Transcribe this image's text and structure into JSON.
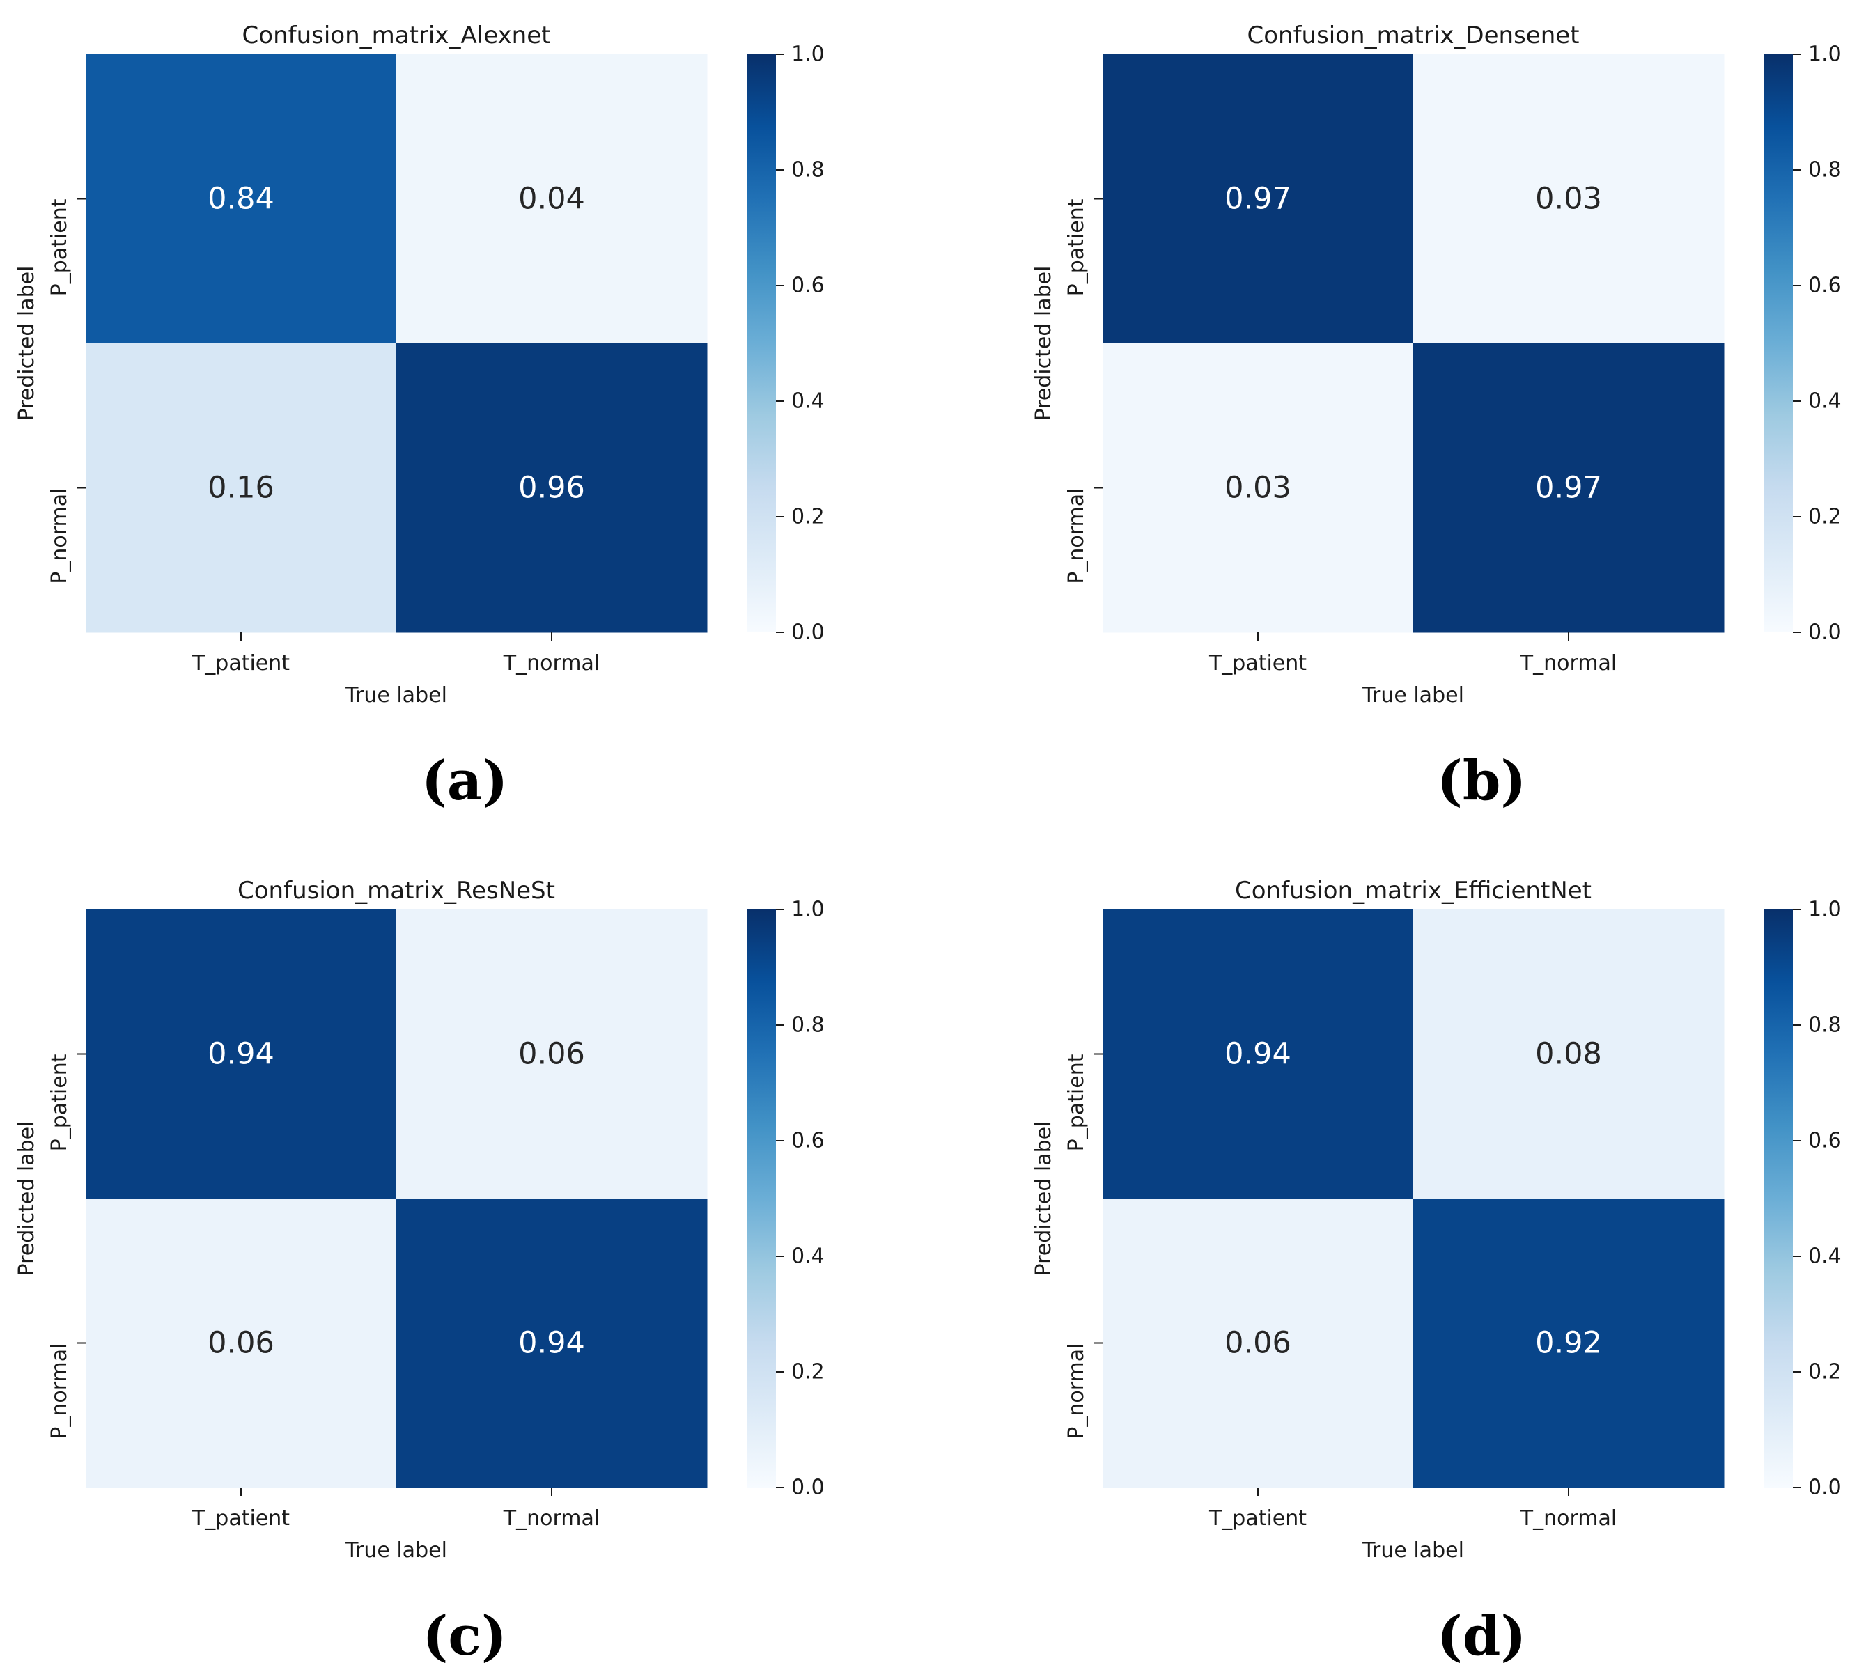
{
  "colormap": {
    "name": "Blues",
    "stops": [
      "#f7fbff",
      "#deebf7",
      "#c6dbef",
      "#9ecae1",
      "#6baed6",
      "#4292c6",
      "#2171b5",
      "#08519c",
      "#08306b"
    ]
  },
  "text_colors": {
    "dark": "#262626",
    "light": "#ffffff"
  },
  "chart_data": [
    {
      "type": "heatmap",
      "panel_label": "(a)",
      "title": "Confusion_matrix_Alexnet",
      "xlabel": "True label",
      "ylabel": "Predicted label",
      "x_categories": [
        "T_patient",
        "T_normal"
      ],
      "y_categories": [
        "P_patient",
        "P_normal"
      ],
      "values": [
        [
          0.84,
          0.04
        ],
        [
          0.16,
          0.96
        ]
      ],
      "value_labels": [
        [
          "0.84",
          "0.04"
        ],
        [
          "0.16",
          "0.96"
        ]
      ],
      "colorbar": {
        "range": [
          0.0,
          1.0
        ],
        "ticks": [
          "0.0",
          "0.2",
          "0.4",
          "0.6",
          "0.8",
          "1.0"
        ]
      }
    },
    {
      "type": "heatmap",
      "panel_label": "(b)",
      "title": "Confusion_matrix_Densenet",
      "xlabel": "True label",
      "ylabel": "Predicted label",
      "x_categories": [
        "T_patient",
        "T_normal"
      ],
      "y_categories": [
        "P_patient",
        "P_normal"
      ],
      "values": [
        [
          0.97,
          0.03
        ],
        [
          0.03,
          0.97
        ]
      ],
      "value_labels": [
        [
          "0.97",
          "0.03"
        ],
        [
          "0.03",
          "0.97"
        ]
      ],
      "colorbar": {
        "range": [
          0.0,
          1.0
        ],
        "ticks": [
          "0.0",
          "0.2",
          "0.4",
          "0.6",
          "0.8",
          "1.0"
        ]
      }
    },
    {
      "type": "heatmap",
      "panel_label": "(c)",
      "title": "Confusion_matrix_ResNeSt",
      "xlabel": "True label",
      "ylabel": "Predicted label",
      "x_categories": [
        "T_patient",
        "T_normal"
      ],
      "y_categories": [
        "P_patient",
        "P_normal"
      ],
      "values": [
        [
          0.94,
          0.06
        ],
        [
          0.06,
          0.94
        ]
      ],
      "value_labels": [
        [
          "0.94",
          "0.06"
        ],
        [
          "0.06",
          "0.94"
        ]
      ],
      "colorbar": {
        "range": [
          0.0,
          1.0
        ],
        "ticks": [
          "0.0",
          "0.2",
          "0.4",
          "0.6",
          "0.8",
          "1.0"
        ]
      }
    },
    {
      "type": "heatmap",
      "panel_label": "(d)",
      "title": "Confusion_matrix_EfficientNet",
      "xlabel": "True label",
      "ylabel": "Predicted label",
      "x_categories": [
        "T_patient",
        "T_normal"
      ],
      "y_categories": [
        "P_patient",
        "P_normal"
      ],
      "values": [
        [
          0.94,
          0.08
        ],
        [
          0.06,
          0.92
        ]
      ],
      "value_labels": [
        [
          "0.94",
          "0.08"
        ],
        [
          "0.06",
          "0.92"
        ]
      ],
      "colorbar": {
        "range": [
          0.0,
          1.0
        ],
        "ticks": [
          "0.0",
          "0.2",
          "0.4",
          "0.6",
          "0.8",
          "1.0"
        ]
      }
    }
  ]
}
